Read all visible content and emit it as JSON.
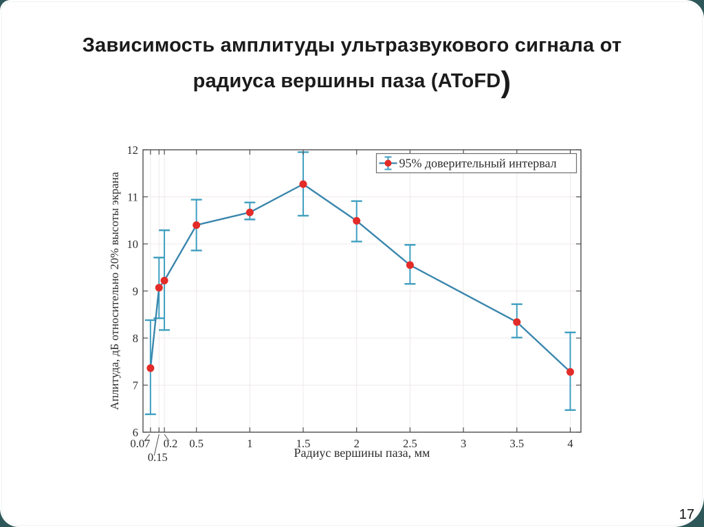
{
  "slide": {
    "title_line1": "Зависимость амплитуды ультразвукового сигнала от",
    "title_line2": "радиуса вершины паза (AToFD",
    "title_line2_suffix": ")",
    "page_number": "17",
    "corner_accent_color": "#2e5759"
  },
  "chart_data": {
    "type": "line",
    "title": "",
    "xlabel": "Радиус вершины паза, мм",
    "ylabel": "Аплитуда, дБ относительно 20% высоты экрана",
    "legend": [
      "95% доверительный интервал"
    ],
    "legend_position": "top-right",
    "grid": true,
    "xlim": [
      0,
      4.1
    ],
    "ylim": [
      6,
      12
    ],
    "xticks": [
      0.07,
      0.15,
      0.2,
      0.5,
      1,
      1.5,
      2,
      2.5,
      3,
      3.5,
      4
    ],
    "xtick_labels": [
      "0.07",
      "0.15",
      "0.2",
      "0.5",
      "1",
      "1.5",
      "2",
      "2.5",
      "3",
      "3.5",
      "4"
    ],
    "yticks": [
      6,
      7,
      8,
      9,
      10,
      11,
      12
    ],
    "ytick_labels": [
      "6",
      "7",
      "8",
      "9",
      "10",
      "11",
      "12"
    ],
    "series": [
      {
        "name": "95% доверительный интервал",
        "x": [
          0.07,
          0.15,
          0.2,
          0.5,
          1.0,
          1.5,
          2.0,
          2.5,
          3.5,
          4.0
        ],
        "y": [
          7.36,
          9.07,
          9.22,
          10.4,
          10.67,
          11.27,
          10.49,
          9.55,
          8.34,
          7.28
        ],
        "err_low": [
          6.38,
          8.42,
          8.17,
          9.86,
          10.52,
          10.6,
          10.05,
          9.15,
          8.01,
          6.47
        ],
        "err_high": [
          8.38,
          9.71,
          10.29,
          10.94,
          10.88,
          11.95,
          10.91,
          9.98,
          8.72,
          8.12
        ]
      }
    ],
    "colors": {
      "line": "#3a86ad",
      "errorbar": "#3f9fc0",
      "marker": "#e32b28",
      "grid": "#efe8e9",
      "axis": "#4d4d4d",
      "legend_border": "#6f6f6f"
    }
  }
}
